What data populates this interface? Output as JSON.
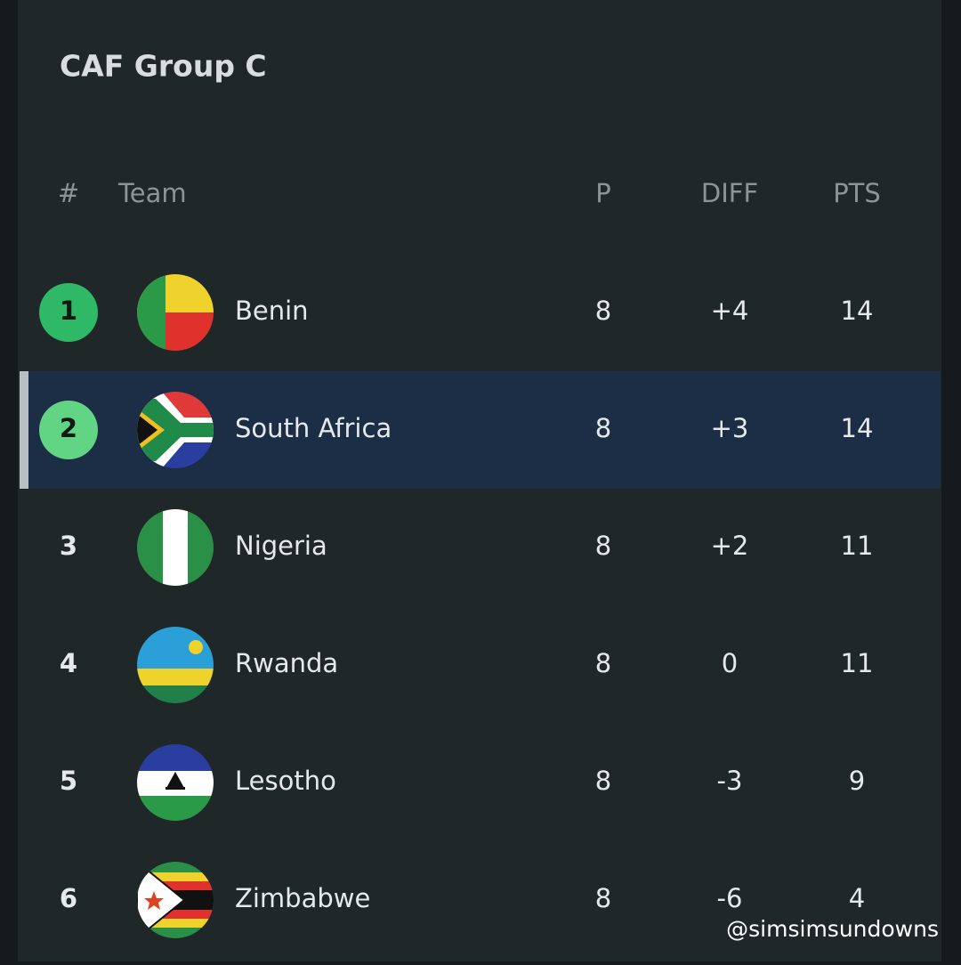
{
  "header": {
    "title": "CAF Group C"
  },
  "table": {
    "columns": [
      "#",
      "Team",
      "P",
      "DIFF",
      "PTS"
    ],
    "rows": [
      [
        1,
        "Benin",
        8,
        "+4",
        14
      ],
      [
        2,
        "South Africa",
        8,
        "+3",
        14
      ],
      [
        3,
        "Nigeria",
        8,
        "+2",
        11
      ],
      [
        4,
        "Rwanda",
        8,
        0,
        11
      ],
      [
        5,
        "Lesotho",
        8,
        -3,
        9
      ],
      [
        6,
        "Zimbabwe",
        8,
        -6,
        4
      ]
    ]
  },
  "watermark": "@simsimsundowns"
}
